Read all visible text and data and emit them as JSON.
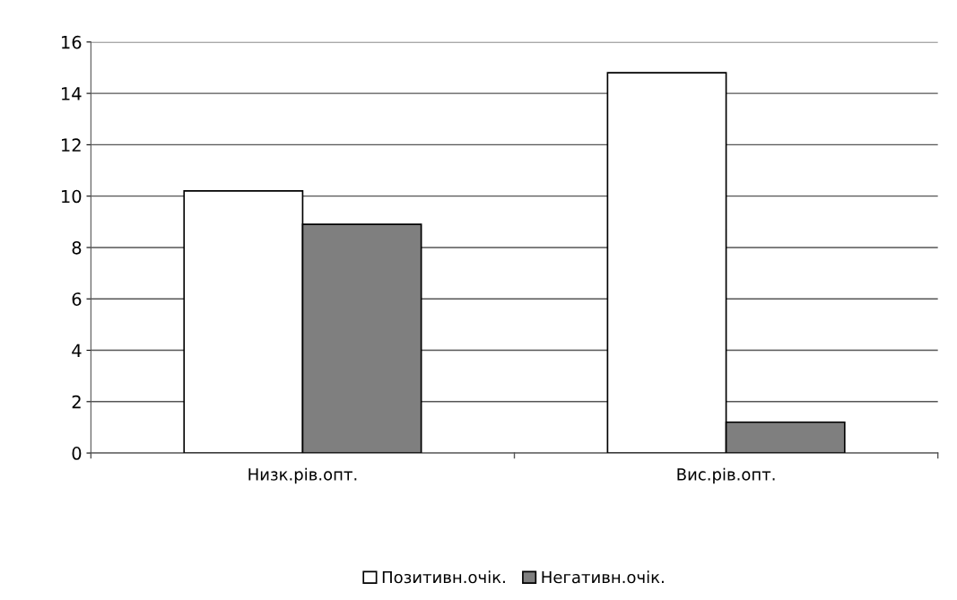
{
  "chart_data": {
    "type": "bar",
    "categories": [
      "Низк.рів.опт.",
      "Вис.рів.опт."
    ],
    "series": [
      {
        "name": "Позитивн.очік.",
        "color": "#ffffff",
        "values": [
          10.2,
          14.8
        ]
      },
      {
        "name": "Негативн.очік.",
        "color": "#7f7f7f",
        "values": [
          8.9,
          1.2
        ]
      }
    ],
    "ylim": [
      0,
      16
    ],
    "yticks": [
      0,
      2,
      4,
      6,
      8,
      10,
      12,
      14,
      16
    ],
    "grid": "y",
    "legend": "bottom"
  }
}
